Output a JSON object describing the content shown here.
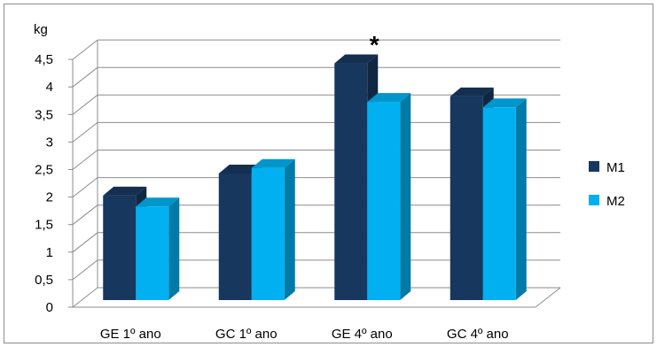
{
  "chart_data": {
    "type": "bar",
    "style": "3d-clustered",
    "ylabel": "kg",
    "ylim": [
      0,
      4.5
    ],
    "ytick_step": 0.5,
    "yticks": [
      "0",
      "0,5",
      "1",
      "1,5",
      "2",
      "2,5",
      "3",
      "3,5",
      "4",
      "4,5"
    ],
    "categories": [
      "GE 1º ano",
      "GC 1º ano",
      "GE 4º ano",
      "GC 4º ano"
    ],
    "series": [
      {
        "name": "M1",
        "values": [
          1.9,
          2.3,
          4.3,
          3.7
        ],
        "color": "#17375e"
      },
      {
        "name": "M2",
        "values": [
          1.7,
          2.4,
          3.6,
          3.5
        ],
        "color": "#00b0f0"
      }
    ],
    "grid": true,
    "legend_position": "right",
    "annotations": [
      {
        "text": "*",
        "category": "GE 4º ano"
      }
    ]
  }
}
